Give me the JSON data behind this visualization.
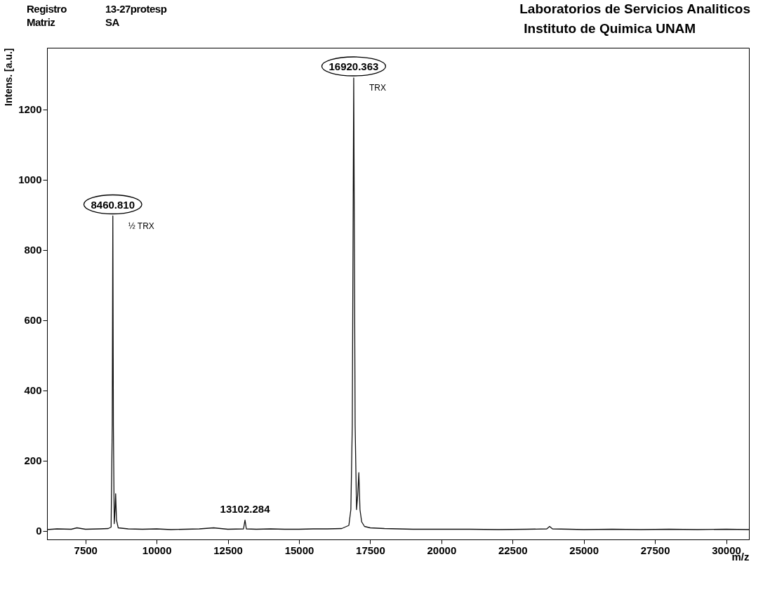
{
  "chart_data": {
    "type": "line",
    "title": "Laboratorios de Servicios Analiticos",
    "subtitle": "Instituto de Quimica UNAM",
    "xlabel": "m/z",
    "ylabel": "Intens. [a.u.]",
    "annotations": [
      "Registro",
      "13-27protesp",
      "Matriz",
      "SA",
      {
        "text": "8460.810",
        "x": 8460.81,
        "y": 896
      },
      {
        "text": "½ TRX",
        "x": 8460.81,
        "y": 896
      },
      {
        "text": "16920.363",
        "x": 16920.363,
        "y": 1289
      },
      {
        "text": "TRX",
        "x": 16920.363,
        "y": 1289
      },
      {
        "text": "13102.284",
        "x": 13102.284,
        "y": 30
      }
    ],
    "x": [
      6150,
      6500,
      7000,
      7200,
      7500,
      8000,
      8300,
      8400,
      8440,
      8460.81,
      8480,
      8510,
      8540,
      8560,
      8590,
      8650,
      9000,
      9500,
      10000,
      10500,
      11000,
      11500,
      12000,
      12500,
      13050,
      13102.284,
      13150,
      13500,
      14000,
      14500,
      15000,
      15500,
      16000,
      16500,
      16750,
      16820,
      16870,
      16920.363,
      16970,
      17020,
      17060,
      17100,
      17140,
      17200,
      17300,
      17500,
      18000,
      18500,
      19000,
      20000,
      21000,
      22000,
      23000,
      23700,
      23800,
      23900,
      24500,
      25000,
      26000,
      27000,
      28000,
      29000,
      30000,
      30800
    ],
    "series": [
      {
        "color": "#111111",
        "values": [
          3,
          5,
          4,
          8,
          4,
          5,
          6,
          10,
          300,
          896,
          300,
          20,
          60,
          105,
          30,
          8,
          5,
          4,
          5,
          3,
          4,
          5,
          8,
          4,
          5,
          30,
          5,
          4,
          5,
          4,
          4,
          5,
          5,
          6,
          15,
          60,
          300,
          1289,
          300,
          60,
          100,
          165,
          60,
          25,
          12,
          8,
          6,
          5,
          4,
          4,
          4,
          3,
          4,
          5,
          12,
          5,
          4,
          3,
          4,
          3,
          4,
          3,
          4,
          3
        ]
      }
    ],
    "xlim": [
      6150,
      30800
    ],
    "ylim": [
      -25,
      1375
    ],
    "xticks": [
      7500,
      10000,
      12500,
      15000,
      17500,
      20000,
      22500,
      25000,
      27500,
      30000
    ],
    "yticks": [
      0,
      200,
      400,
      600,
      800,
      1000,
      1200
    ],
    "grid": false,
    "legend": false,
    "marker": "none",
    "line_style": "solid"
  }
}
